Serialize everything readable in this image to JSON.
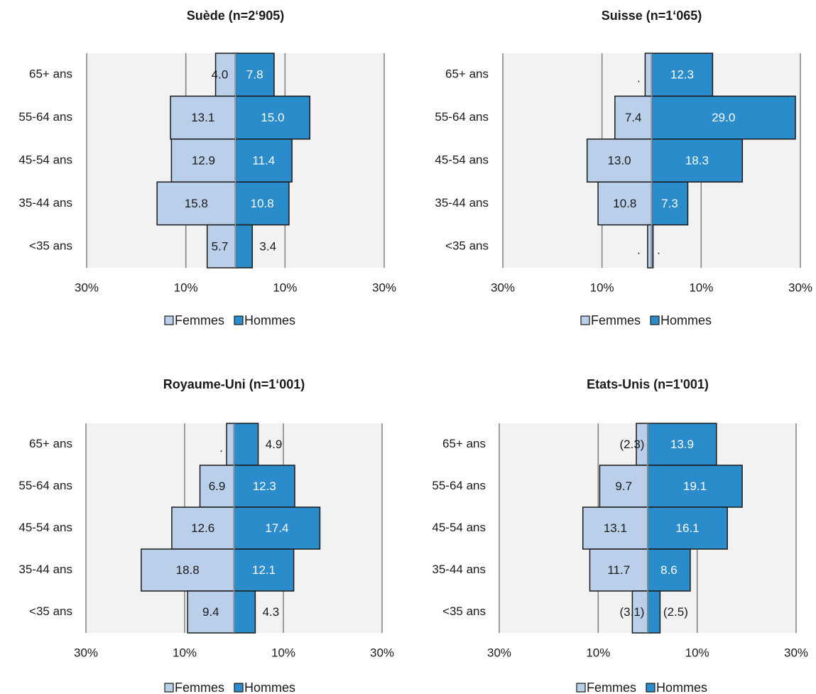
{
  "colors": {
    "femmes": "#b9cfea",
    "hommes": "#2b8ccb",
    "plot_bg": "#f2f2f2",
    "grid": "#808080",
    "border": "#1a1a1a"
  },
  "chart_data": [
    {
      "type": "bar",
      "title": "Suède (n=2‘905)",
      "categories": [
        "65+ ans",
        "55-64 ans",
        "45-54 ans",
        "35-44 ans",
        "<35 ans"
      ],
      "series": [
        {
          "name": "Femmes",
          "values": [
            4.0,
            13.1,
            12.9,
            15.8,
            5.7
          ],
          "labels": [
            "4.0",
            "13.1",
            "12.9",
            "15.8",
            "5.7"
          ]
        },
        {
          "name": "Hommes",
          "values": [
            7.8,
            15.0,
            11.4,
            10.8,
            3.4
          ],
          "labels": [
            "7.8",
            "15.0",
            "11.4",
            "10.8",
            "3.4"
          ]
        }
      ],
      "xlim": [
        -30,
        30
      ],
      "xticks": [
        -30,
        -10,
        10,
        30
      ],
      "tick_labels": [
        "30%",
        "10%",
        "10%",
        "30%"
      ],
      "legend": "bottom",
      "grid": true
    },
    {
      "type": "bar",
      "title": "Suisse (n=1‘065)",
      "categories": [
        "65+ ans",
        "55-64 ans",
        "45-54 ans",
        "35-44 ans",
        "<35 ans"
      ],
      "series": [
        {
          "name": "Femmes",
          "values": [
            1.3,
            7.4,
            13.0,
            10.8,
            0.8
          ],
          "labels": [
            ".",
            "7.4",
            "13.0",
            "10.8",
            "."
          ]
        },
        {
          "name": "Hommes",
          "values": [
            12.3,
            29.0,
            18.3,
            7.3,
            0.3
          ],
          "labels": [
            "12.3",
            "29.0",
            "18.3",
            "7.3",
            "."
          ]
        }
      ],
      "xlim": [
        -30,
        30
      ],
      "xticks": [
        -30,
        -10,
        10,
        30
      ],
      "tick_labels": [
        "30%",
        "10%",
        "10%",
        "30%"
      ],
      "legend": "bottom",
      "grid": true
    },
    {
      "type": "bar",
      "title": "Royaume-Uni (n=1‘001)",
      "categories": [
        "65+ ans",
        "55-64 ans",
        "45-54 ans",
        "35-44 ans",
        "<35 ans"
      ],
      "series": [
        {
          "name": "Femmes",
          "values": [
            1.5,
            6.9,
            12.6,
            18.8,
            9.4
          ],
          "labels": [
            ".",
            "6.9",
            "12.6",
            "18.8",
            "9.4"
          ]
        },
        {
          "name": "Hommes",
          "values": [
            4.9,
            12.3,
            17.4,
            12.1,
            4.3
          ],
          "labels": [
            "4.9",
            "12.3",
            "17.4",
            "12.1",
            "4.3"
          ]
        }
      ],
      "xlim": [
        -30,
        30
      ],
      "xticks": [
        -30,
        -10,
        10,
        30
      ],
      "tick_labels": [
        "30%",
        "10%",
        "10%",
        "30%"
      ],
      "legend": "bottom",
      "grid": true
    },
    {
      "type": "bar",
      "title": "Etats-Unis (n=1'001)",
      "categories": [
        "65+ ans",
        "55-64 ans",
        "45-54 ans",
        "35-44 ans",
        "<35 ans"
      ],
      "series": [
        {
          "name": "Femmes",
          "values": [
            2.3,
            9.7,
            13.1,
            11.7,
            3.1
          ],
          "labels": [
            "(2.3)",
            "9.7",
            "13.1",
            "11.7",
            "(3.1)"
          ]
        },
        {
          "name": "Hommes",
          "values": [
            13.9,
            19.1,
            16.1,
            8.6,
            2.5
          ],
          "labels": [
            "13.9",
            "19.1",
            "16.1",
            "8.6",
            "(2.5)"
          ]
        }
      ],
      "xlim": [
        -30,
        30
      ],
      "xticks": [
        -30,
        -10,
        10,
        30
      ],
      "tick_labels": [
        "30%",
        "10%",
        "10%",
        "30%"
      ],
      "legend": "bottom",
      "grid": true
    }
  ]
}
